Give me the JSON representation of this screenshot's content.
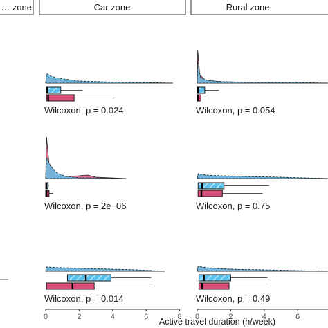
{
  "chart_data": {
    "type": "faceted-density-boxplot",
    "xlabel": "Active travel duration (h/week)",
    "xlim": [
      0,
      8
    ],
    "xticks": [
      0,
      2,
      4,
      6,
      8
    ],
    "tick_labels": [
      "0",
      "2",
      "4",
      "6",
      "8"
    ],
    "grid": false,
    "legend": "none",
    "colors": {
      "blue": "#5bc0eb",
      "pink": "#d94f7a"
    },
    "columns": [
      "… zone",
      "Car zone",
      "Rural zone"
    ],
    "rows": [
      [
        {
          "annotation": "",
          "panel": false
        },
        {
          "annotation": "Wilcoxon, p = 0.024",
          "panel": true,
          "blue": {
            "min": 0,
            "q1": 0.05,
            "median": 0.1,
            "q3": 0.9,
            "max": 2.2
          },
          "pink": {
            "min": 0,
            "q1": 0.05,
            "median": 0.15,
            "q3": 1.7,
            "max": 4.1
          },
          "density_extent_max": 7.6
        },
        {
          "annotation": "Wilcoxon, p = 0.054",
          "panel": true,
          "blue": {
            "min": 0,
            "q1": 0.02,
            "median": 0.05,
            "q3": 0.45,
            "max": 1.3
          },
          "pink": {
            "min": 0,
            "q1": 0.02,
            "median": 0.05,
            "q3": 0.22,
            "max": 0.7
          },
          "density_extent_max": 7.8
        }
      ],
      [
        {
          "annotation": "",
          "panel": false
        },
        {
          "annotation": "Wilcoxon, p = 2e−06",
          "panel": true,
          "blue": {
            "min": 0,
            "q1": 0.0,
            "median": 0.05,
            "q3": 0.15,
            "max": 0.2
          },
          "pink": {
            "min": 0,
            "q1": 0.0,
            "median": 0.05,
            "q3": 0.2,
            "max": 0.45
          },
          "density_extent_max": 4.8
        },
        {
          "annotation": "Wilcoxon, p = 0.75",
          "panel": true,
          "blue": {
            "min": 0,
            "q1": 0.05,
            "median": 0.3,
            "q3": 1.6,
            "max": 4.3
          },
          "pink": {
            "min": 0,
            "q1": 0.05,
            "median": 0.25,
            "q3": 1.5,
            "max": 3.9
          },
          "density_extent_max": 7.8
        }
      ],
      [
        {
          "annotation": "",
          "panel": true,
          "partial": true
        },
        {
          "annotation": "Wilcoxon, p = 0.014",
          "panel": true,
          "blue": {
            "min": 0,
            "q1": 1.3,
            "median": 2.4,
            "q3": 3.9,
            "max": 6.3
          },
          "pink": {
            "min": 0,
            "q1": 0.05,
            "median": 1.6,
            "q3": 2.9,
            "max": 6.3
          },
          "density_extent_max": 7.1
        },
        {
          "annotation": "Wilcoxon, p = 0.49",
          "panel": true,
          "blue": {
            "min": 0,
            "q1": 0.1,
            "median": 0.4,
            "q3": 2.0,
            "max": 4.2
          },
          "pink": {
            "min": 0,
            "q1": 0.1,
            "median": 0.3,
            "q3": 1.9,
            "max": 4.2
          },
          "density_extent_max": 7.8
        }
      ]
    ]
  }
}
